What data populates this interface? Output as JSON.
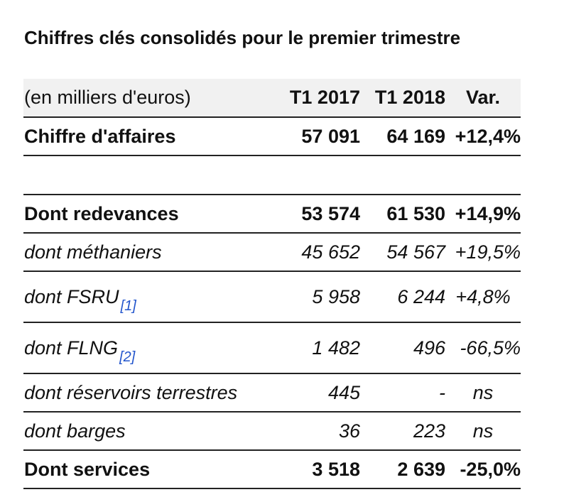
{
  "title": "Chiffres clés consolidés pour le premier trimestre",
  "table": {
    "header": {
      "label": "(en milliers d'euros)",
      "col1": "T1 2017",
      "col2": "T1 2018",
      "col3": "Var."
    },
    "rows": [
      {
        "label": "Chiffre d'affaires",
        "v1": "57 091",
        "v2": "64 169",
        "v3": "+12,4%"
      },
      {
        "label": "Dont redevances",
        "v1": "53 574",
        "v2": "61 530",
        "v3": "+14,9%"
      },
      {
        "label": "dont méthaniers",
        "v1": "45 652",
        "v2": "54 567",
        "v3": "+19,5%"
      },
      {
        "label": "dont FSRU",
        "ref": "[1]",
        "v1": "5 958",
        "v2": "6 244",
        "v3": "+4,8%"
      },
      {
        "label": "dont FLNG",
        "ref": "[2]",
        "v1": "1 482",
        "v2": "496",
        "v3": "-66,5%"
      },
      {
        "label": "dont réservoirs terrestres",
        "v1": "445",
        "v2": "-",
        "v3": "ns"
      },
      {
        "label": "dont barges",
        "v1": "36",
        "v2": "223",
        "v3": "ns"
      },
      {
        "label": "Dont services",
        "v1": "3 518",
        "v2": "2 639",
        "v3": "-25,0%"
      }
    ]
  }
}
